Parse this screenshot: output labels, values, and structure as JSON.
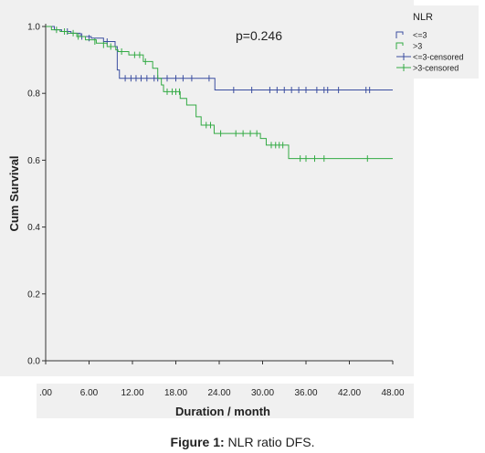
{
  "chart_data": {
    "type": "line",
    "subtype": "kaplan-meier",
    "xlabel": "Duration / month",
    "ylabel": "Cum Survival",
    "xlim": [
      0,
      48
    ],
    "ylim": [
      0,
      1.0
    ],
    "x_tick_labels": [
      ".00",
      "6.00",
      "12.00",
      "18.00",
      "24.00",
      "30.00",
      "36.00",
      "42.00",
      "48.00"
    ],
    "y_tick_labels": [
      "0.0",
      "0.2",
      "0.4",
      "0.6",
      "0.8",
      "1.0"
    ],
    "y_ticks": [
      0,
      0.2,
      0.4,
      0.6,
      0.8,
      1.0
    ],
    "annotation": "p=0.246",
    "legend_title": "NLR",
    "legend_placement": "top-right",
    "legend_entries": [
      "<=3",
      ">3",
      "<=3-censored",
      ">3-censored"
    ],
    "series": [
      {
        "name": "<=3",
        "color": "#3b4ea0",
        "steps": [
          [
            0,
            1.0
          ],
          [
            1.2,
            0.99
          ],
          [
            2.2,
            0.985
          ],
          [
            3.5,
            0.98
          ],
          [
            4.8,
            0.97
          ],
          [
            6.3,
            0.965
          ],
          [
            8.0,
            0.955
          ],
          [
            9.6,
            0.94
          ],
          [
            9.9,
            0.87
          ],
          [
            10.2,
            0.845
          ],
          [
            23.3,
            0.845
          ],
          [
            23.4,
            0.81
          ],
          [
            48,
            0.81
          ]
        ],
        "censored": [
          [
            3.0,
            0.985
          ],
          [
            5.0,
            0.97
          ],
          [
            6.0,
            0.965
          ],
          [
            8.5,
            0.955
          ],
          [
            11.0,
            0.845
          ],
          [
            11.8,
            0.845
          ],
          [
            12.5,
            0.845
          ],
          [
            13.2,
            0.845
          ],
          [
            14.0,
            0.845
          ],
          [
            15.0,
            0.845
          ],
          [
            15.5,
            0.845
          ],
          [
            16.8,
            0.845
          ],
          [
            18.0,
            0.845
          ],
          [
            19.0,
            0.845
          ],
          [
            20.2,
            0.845
          ],
          [
            22.6,
            0.845
          ],
          [
            26.0,
            0.81
          ],
          [
            28.5,
            0.81
          ],
          [
            31.0,
            0.81
          ],
          [
            32.0,
            0.81
          ],
          [
            33.0,
            0.81
          ],
          [
            34.0,
            0.81
          ],
          [
            35.0,
            0.81
          ],
          [
            36.0,
            0.81
          ],
          [
            37.5,
            0.81
          ],
          [
            38.5,
            0.81
          ],
          [
            39.0,
            0.81
          ],
          [
            40.5,
            0.81
          ],
          [
            44.3,
            0.81
          ],
          [
            44.8,
            0.81
          ]
        ]
      },
      {
        "name": ">3",
        "color": "#33aa44",
        "steps": [
          [
            0,
            1.0
          ],
          [
            0.8,
            0.99
          ],
          [
            2.0,
            0.985
          ],
          [
            3.0,
            0.98
          ],
          [
            4.3,
            0.97
          ],
          [
            5.5,
            0.96
          ],
          [
            7.0,
            0.95
          ],
          [
            8.5,
            0.94
          ],
          [
            9.7,
            0.93
          ],
          [
            10.0,
            0.925
          ],
          [
            11.5,
            0.915
          ],
          [
            13.5,
            0.895
          ],
          [
            14.8,
            0.875
          ],
          [
            15.5,
            0.845
          ],
          [
            16.0,
            0.825
          ],
          [
            16.3,
            0.805
          ],
          [
            18.6,
            0.785
          ],
          [
            19.5,
            0.765
          ],
          [
            20.8,
            0.73
          ],
          [
            21.5,
            0.705
          ],
          [
            23.3,
            0.68
          ],
          [
            29.7,
            0.665
          ],
          [
            30.5,
            0.645
          ],
          [
            33.6,
            0.605
          ],
          [
            48,
            0.605
          ]
        ],
        "censored": [
          [
            1.5,
            0.99
          ],
          [
            2.6,
            0.985
          ],
          [
            3.8,
            0.98
          ],
          [
            4.5,
            0.97
          ],
          [
            6.8,
            0.955
          ],
          [
            8.0,
            0.945
          ],
          [
            9.0,
            0.94
          ],
          [
            10.5,
            0.925
          ],
          [
            12.3,
            0.915
          ],
          [
            13.0,
            0.915
          ],
          [
            13.8,
            0.895
          ],
          [
            16.8,
            0.805
          ],
          [
            17.5,
            0.805
          ],
          [
            18.0,
            0.805
          ],
          [
            18.5,
            0.805
          ],
          [
            22.2,
            0.705
          ],
          [
            22.8,
            0.705
          ],
          [
            24.2,
            0.68
          ],
          [
            26.3,
            0.68
          ],
          [
            27.3,
            0.68
          ],
          [
            28.3,
            0.68
          ],
          [
            29.2,
            0.68
          ],
          [
            31.2,
            0.645
          ],
          [
            31.8,
            0.645
          ],
          [
            32.3,
            0.645
          ],
          [
            32.8,
            0.645
          ],
          [
            35.2,
            0.605
          ],
          [
            36.0,
            0.605
          ],
          [
            37.2,
            0.605
          ],
          [
            38.5,
            0.605
          ],
          [
            44.5,
            0.605
          ]
        ]
      }
    ]
  },
  "caption": {
    "label": "Figure 1:",
    "text": " NLR ratio DFS."
  }
}
